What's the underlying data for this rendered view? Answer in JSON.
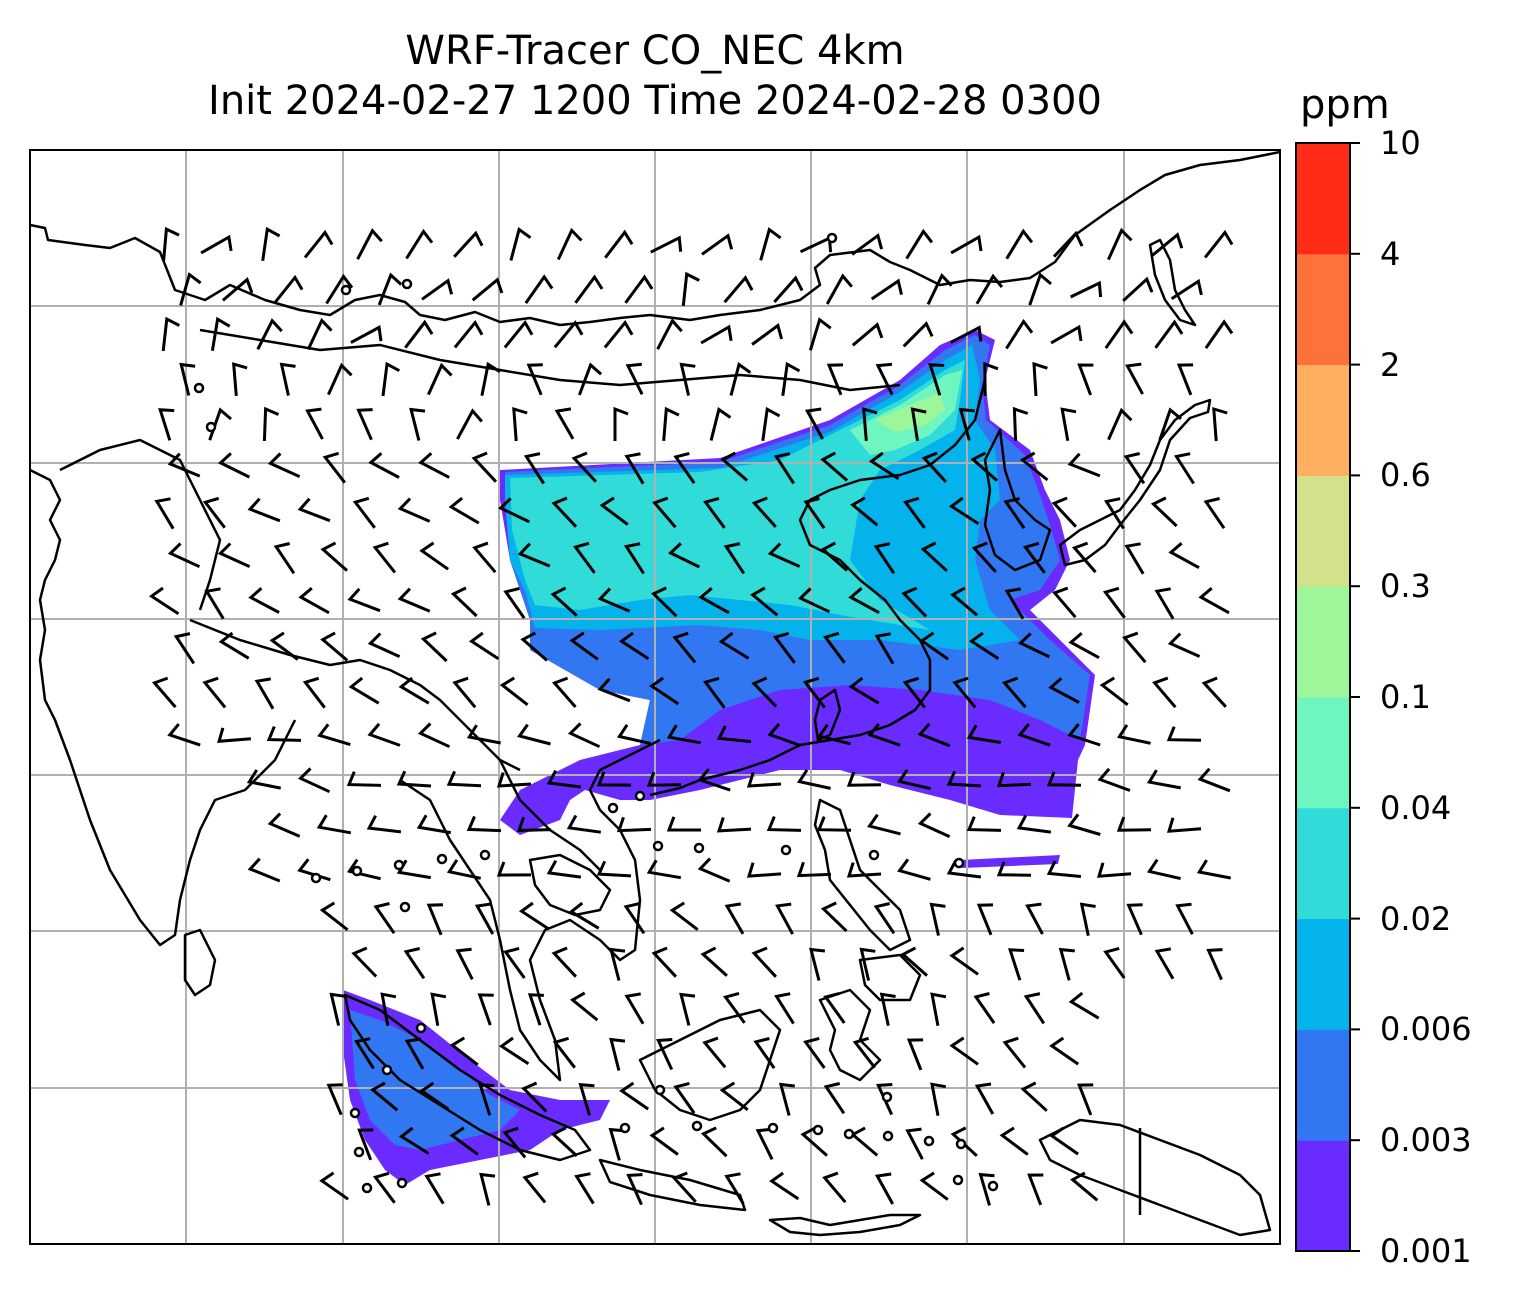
{
  "title": {
    "line1": "WRF-Tracer CO_NEC 4km",
    "line2": "Init 2024-02-27 1200 Time 2024-02-28 0300"
  },
  "map": {
    "field": "CO_NEC tracer concentration",
    "gridlines": true,
    "gridline_color": "#b0b0b0",
    "coastline_color": "#000000",
    "overlay": "wind barbs and calm-wind circles"
  },
  "colorbar": {
    "unit": "ppm",
    "levels": [
      "0.001",
      "0.003",
      "0.006",
      "0.02",
      "0.04",
      "0.1",
      "0.3",
      "0.6",
      "2",
      "4",
      "10"
    ],
    "colors": [
      "#6a2bff",
      "#3277f2",
      "#05b3ec",
      "#30dbd8",
      "#6ff5c0",
      "#9ef69a",
      "#d2e18a",
      "#ffaf5f",
      "#ff713b",
      "#ff2b17"
    ]
  }
}
